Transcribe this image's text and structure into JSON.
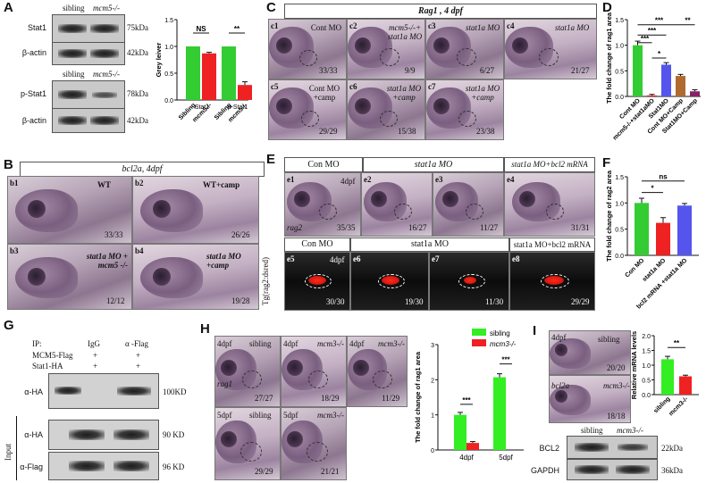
{
  "panels": {
    "A": {
      "label": "A",
      "cols": [
        "sibling",
        "mcm5-/-"
      ],
      "rows": [
        {
          "name": "Stat1",
          "kd": "75kDa"
        },
        {
          "name": "β-actin",
          "kd": "42kDa"
        },
        {
          "name": "p-Stat1",
          "kd": "78kDa"
        },
        {
          "name": "β-actin",
          "kd": "42kDa"
        }
      ]
    },
    "B": {
      "label": "B",
      "title": "bcl2a, 4dpf",
      "images": [
        {
          "id": "b1",
          "text": "WT",
          "count": "33/33"
        },
        {
          "id": "b2",
          "text": "WT+camp",
          "count": "26/26"
        },
        {
          "id": "b3",
          "text": "stat1a MO + mcm5 -/-",
          "count": "12/12"
        },
        {
          "id": "b4",
          "text": "stat1a MO +camp",
          "count": "19/28"
        }
      ]
    },
    "C": {
      "label": "C",
      "title": "Rag1 , 4 dpf",
      "images": [
        {
          "id": "c1",
          "text": "Cont MO",
          "count": "33/33"
        },
        {
          "id": "c2",
          "text": "mcm5-/-+ stat1a MO",
          "count": "9/9"
        },
        {
          "id": "c3",
          "text": "stat1a MO",
          "count": "6/27"
        },
        {
          "id": "c4",
          "text": "stat1a MO",
          "count": "21/27"
        },
        {
          "id": "c5",
          "text": "Cont MO +camp",
          "count": "29/29"
        },
        {
          "id": "c6",
          "text": "stat1a MO +camp",
          "count": "15/38"
        },
        {
          "id": "c7",
          "text": "stat1a MO +camp",
          "count": "23/38"
        }
      ]
    },
    "D": {
      "label": "D"
    },
    "E": {
      "label": "E",
      "headers_top": [
        "Con MO",
        "stat1a MO",
        "stat1a MO+bcl2 mRNA"
      ],
      "headers_bottom": [
        "Con MO",
        "stat1a MO",
        "stat1a MO+bcl2 mRNA"
      ],
      "stage": "4dpf",
      "probe": "rag2",
      "side_label": "Tg(rag2:dsred)",
      "images_top": [
        {
          "id": "e1",
          "count": "35/35"
        },
        {
          "id": "e2",
          "count": "16/27"
        },
        {
          "id": "e3",
          "count": "11/27"
        },
        {
          "id": "e4",
          "count": "31/31"
        }
      ],
      "images_bottom": [
        {
          "id": "e5",
          "count": "30/30"
        },
        {
          "id": "e6",
          "count": "19/30"
        },
        {
          "id": "e7",
          "count": "11/30"
        },
        {
          "id": "e8",
          "count": "29/29"
        }
      ]
    },
    "F": {
      "label": "F"
    },
    "G": {
      "label": "G",
      "ip_label": "IP:",
      "col_labels": [
        "IgG",
        "α -Flag"
      ],
      "row_labels": [
        "MCM5-Flag",
        "Stat1-HA"
      ],
      "signs": [
        [
          "+",
          "+"
        ],
        [
          "+",
          "+"
        ]
      ],
      "blots": [
        {
          "name": "α-HA",
          "kd": "100KD"
        },
        {
          "name": "α-HA",
          "kd": "90 KD"
        },
        {
          "name": "α-Flag",
          "kd": "96 KD"
        }
      ],
      "input_label": "Input"
    },
    "H": {
      "label": "H",
      "images": [
        {
          "id": "h1",
          "stage": "4dpf",
          "geno": "sibling",
          "probe": "rag1",
          "count": "27/27"
        },
        {
          "id": "h2",
          "stage": "4dpf",
          "geno": "mcm3-/-",
          "count": "18/29"
        },
        {
          "id": "h3",
          "stage": "4dpf",
          "geno": "mcm3-/-",
          "count": "11/29"
        },
        {
          "id": "h4",
          "stage": "5dpf",
          "geno": "sibling",
          "count": "29/29"
        },
        {
          "id": "h5",
          "stage": "5dpf",
          "geno": "mcm3-/-",
          "count": "21/21"
        }
      ]
    },
    "I": {
      "label": "I",
      "images": [
        {
          "id": "i1",
          "stage": "4dpf",
          "geno": "sibling",
          "count": "20/20"
        },
        {
          "id": "i2",
          "probe": "bcl2a",
          "geno": "mcm3-/-",
          "count": "18/18"
        }
      ],
      "blot_cols": [
        "sibling",
        "mcm3-/-"
      ],
      "blots": [
        {
          "name": "BCL2",
          "kd": "22kDa"
        },
        {
          "name": "GAPDH",
          "kd": "36kDa"
        }
      ]
    }
  },
  "chart_data": [
    {
      "id": "A-chart",
      "type": "bar",
      "categories": [
        "Sibling",
        "mcm5-/-",
        "Sibling",
        "mcm5-/-"
      ],
      "group_labels": [
        "Stat1",
        "p-Stat1"
      ],
      "values": [
        1.0,
        0.87,
        1.0,
        0.28
      ],
      "errors": [
        0,
        0.02,
        0,
        0.06
      ],
      "colors": [
        "#33cc33",
        "#ee2222",
        "#33cc33",
        "#ee2222"
      ],
      "significance": [
        "NS",
        "**"
      ],
      "ylabel": "Grey leiver",
      "ylim": [
        0,
        1.5
      ],
      "yticks": [
        "0.0",
        "0.5",
        "1.0",
        "1.5"
      ]
    },
    {
      "id": "D-chart",
      "type": "bar",
      "categories": [
        "Cont MO",
        "mcm5-/-+stat1aMO",
        "Stat1MO",
        "Cont MO+Camp",
        "Stat1MO+Camp"
      ],
      "values": [
        1.0,
        0.02,
        0.62,
        0.4,
        0.1
      ],
      "errors": [
        0.08,
        0.02,
        0.04,
        0.03,
        0.03
      ],
      "colors": [
        "#33cc33",
        "#ee2222",
        "#5555ee",
        "#b06a30",
        "#882266"
      ],
      "significance": [
        "***",
        "*",
        "***",
        "***",
        "**"
      ],
      "ylabel": "The fold change of rag1 area",
      "ylim": [
        0,
        1.5
      ],
      "yticks": [
        "0.0",
        "0.5",
        "1.0",
        "1.5"
      ]
    },
    {
      "id": "F-chart",
      "type": "bar",
      "categories": [
        "Con MO",
        "stat1a MO",
        "bcl2 mRNA +stat1a MO"
      ],
      "values": [
        1.0,
        0.62,
        0.95
      ],
      "errors": [
        0.09,
        0.1,
        0.04
      ],
      "colors": [
        "#33cc33",
        "#ee2222",
        "#5555ee"
      ],
      "significance": [
        "*",
        "ns"
      ],
      "ylabel": "The fold change of rag2 area",
      "ylim": [
        0,
        1.5
      ],
      "yticks": [
        "0.0",
        "0.5",
        "1.0",
        "1.5"
      ]
    },
    {
      "id": "H-chart",
      "type": "bar",
      "categories": [
        "4dpf",
        "5dpf"
      ],
      "series": [
        {
          "name": "sibling",
          "values": [
            1.0,
            2.07
          ],
          "errors": [
            0.07,
            0.1
          ],
          "color": "#33ee22"
        },
        {
          "name": "mcm3-/-",
          "values": [
            0.2,
            0.0
          ],
          "errors": [
            0.04,
            0
          ],
          "color": "#ee2222"
        }
      ],
      "significance": [
        "***",
        "***"
      ],
      "ylabel": "The fold change of rag1 area",
      "ylim": [
        0,
        3
      ],
      "yticks": [
        "0",
        "1",
        "2",
        "3"
      ]
    },
    {
      "id": "I-chart",
      "type": "bar",
      "categories": [
        "sibling",
        "mcm3-/-"
      ],
      "values": [
        1.2,
        0.62
      ],
      "errors": [
        0.1,
        0.04
      ],
      "colors": [
        "#33ee22",
        "#ee2222"
      ],
      "significance": [
        "**"
      ],
      "ylabel": "Relative mRNA levels",
      "ylim": [
        0,
        2.0
      ],
      "yticks": [
        "0.0",
        "0.5",
        "1.0",
        "1.5",
        "2.0"
      ]
    }
  ]
}
